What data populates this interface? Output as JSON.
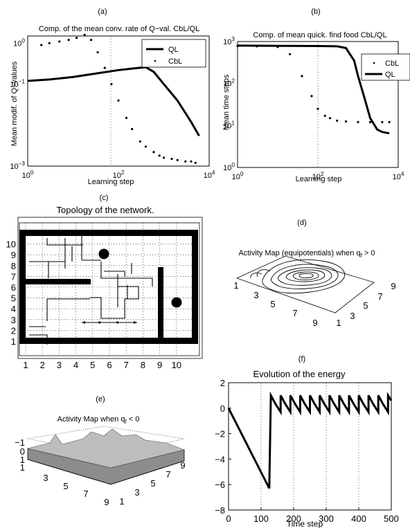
{
  "panels": {
    "a": {
      "label": "(a)",
      "title": "Comp. of the mean conv. rate of Q−val. CbL/QL",
      "xlabel": "Learning step",
      "ylabel": "Mean modif. of Q−values",
      "xticks": [
        {
          "value": 1,
          "base": "10",
          "exp": "0"
        },
        {
          "value": 100,
          "base": "10",
          "exp": "2"
        },
        {
          "value": 10000,
          "base": "10",
          "exp": "4"
        }
      ],
      "yticks": [
        {
          "value": 0.001,
          "base": "10",
          "exp": "−3"
        },
        {
          "value": 0.1,
          "base": "10",
          "exp": "−1"
        },
        {
          "value": 1,
          "base": "10",
          "exp": "0"
        }
      ],
      "legend": [
        {
          "label": "QL",
          "style": "line"
        },
        {
          "label": "CbL",
          "style": "dots"
        }
      ]
    },
    "b": {
      "label": "(b)",
      "title": "Comp. of mean quick. find food CbL/QL",
      "xlabel": "Learning step",
      "ylabel": "Mean time steps",
      "xticks": [
        {
          "value": 1,
          "base": "10",
          "exp": "0"
        },
        {
          "value": 100,
          "base": "10",
          "exp": "2"
        },
        {
          "value": 10000,
          "base": "10",
          "exp": "4"
        }
      ],
      "yticks": [
        {
          "value": 1,
          "base": "10",
          "exp": "0"
        },
        {
          "value": 10,
          "base": "10",
          "exp": "1"
        },
        {
          "value": 100,
          "base": "10",
          "exp": "2"
        },
        {
          "value": 1000,
          "base": "10",
          "exp": "3"
        }
      ],
      "legend": [
        {
          "label": "CbL",
          "style": "dots"
        },
        {
          "label": "QL",
          "style": "line"
        }
      ]
    },
    "c": {
      "label": "(c)",
      "title": "Topology of the network.",
      "xticks": [
        "1",
        "2",
        "3",
        "4",
        "5",
        "6",
        "7",
        "8",
        "9",
        "10"
      ],
      "yticks": [
        "1",
        "2",
        "3",
        "4",
        "5",
        "6",
        "7",
        "8",
        "9",
        "10"
      ]
    },
    "d": {
      "label": "(d)",
      "title_main": "Activity Map (equipotentials) when q",
      "title_sub": "f",
      "title_tail": " > 0",
      "x_ticks": [
        "1",
        "3",
        "5",
        "7",
        "9"
      ],
      "y_ticks": [
        "1",
        "3",
        "5",
        "7",
        "9"
      ]
    },
    "e": {
      "label": "(e)",
      "title_main": "Activity Map when q",
      "title_sub": "f",
      "title_tail": " < 0",
      "z_ticks": [
        "−1",
        "0",
        "1",
        "1"
      ],
      "x_ticks": [
        "3",
        "5",
        "7",
        "9"
      ],
      "y_ticks": [
        "1",
        "3",
        "5",
        "7",
        "9"
      ]
    },
    "f": {
      "label": "(f)",
      "title": "Evolution of the energy",
      "xlabel": "Time step"
    }
  },
  "chart_data": [
    {
      "panel": "a",
      "type": "line",
      "xscale": "log",
      "yscale": "log",
      "xlim": [
        1,
        10000
      ],
      "ylim": [
        0.001,
        1.5
      ],
      "grid": "vertical dotted at 10^2",
      "legend_position": "top-right",
      "series": [
        {
          "name": "QL",
          "style": "line",
          "x": [
            1,
            3,
            10,
            30,
            100,
            200,
            400,
            600,
            1000,
            2000,
            4000,
            6000
          ],
          "y": [
            0.12,
            0.13,
            0.15,
            0.18,
            0.22,
            0.24,
            0.26,
            0.2,
            0.1,
            0.04,
            0.012,
            0.0055
          ]
        },
        {
          "name": "CbL",
          "style": "dots",
          "x": [
            2,
            3,
            5,
            8,
            12,
            18,
            25,
            35,
            50,
            70,
            100,
            150,
            200,
            300,
            400,
            600,
            800,
            1000,
            1500,
            2000,
            3000,
            4000,
            5000
          ],
          "y": [
            0.9,
            1.0,
            1.1,
            1.2,
            1.35,
            1.6,
            1.2,
            0.6,
            0.25,
            0.1,
            0.04,
            0.015,
            0.008,
            0.004,
            0.003,
            0.0022,
            0.0018,
            0.0016,
            0.0015,
            0.0014,
            0.0013,
            0.0013,
            0.0012
          ]
        }
      ]
    },
    {
      "panel": "b",
      "type": "line",
      "xscale": "log",
      "yscale": "log",
      "xlim": [
        1,
        10000
      ],
      "ylim": [
        1,
        1000
      ],
      "grid": "vertical dotted at 10^2",
      "legend_position": "top-right",
      "series": [
        {
          "name": "CbL",
          "style": "dots",
          "x": [
            1,
            3,
            10,
            20,
            40,
            70,
            100,
            150,
            200,
            300,
            500,
            1000,
            2000,
            4000,
            6000
          ],
          "y": [
            780,
            770,
            740,
            500,
            150,
            50,
            25,
            17,
            15,
            13,
            12.5,
            12,
            12,
            12,
            12
          ]
        },
        {
          "name": "QL",
          "style": "line",
          "x": [
            1,
            10,
            100,
            300,
            500,
            800,
            1000,
            1500,
            2000,
            3000,
            4000,
            6000
          ],
          "y": [
            800,
            790,
            780,
            770,
            700,
            350,
            150,
            40,
            15,
            8,
            7,
            6.5
          ]
        }
      ]
    },
    {
      "panel": "f",
      "type": "line",
      "xlim": [
        0,
        500
      ],
      "ylim": [
        -8,
        2
      ],
      "xticks": [
        0,
        100,
        200,
        300,
        400,
        500
      ],
      "yticks": [
        -8,
        -6,
        -4,
        -2,
        0,
        2
      ],
      "grid": "vertical dotted at 100, 200, 300, 400",
      "series": [
        {
          "x": [
            0,
            125,
            130,
            130,
            145,
            160,
            160,
            175,
            190,
            190,
            205,
            220,
            220,
            235,
            250,
            250,
            265,
            280,
            280,
            295,
            310,
            310,
            325,
            340,
            340,
            355,
            370,
            370,
            385,
            400,
            400,
            415,
            430,
            430,
            445,
            460,
            460,
            475,
            490,
            490,
            500
          ],
          "y": [
            0,
            -6.3,
            1,
            1,
            0.3,
            -0.3,
            1,
            0.3,
            -0.3,
            1,
            0.3,
            -0.3,
            1,
            0.3,
            -0.3,
            1,
            0.3,
            -0.3,
            1,
            0.3,
            -0.3,
            1,
            0.3,
            -0.3,
            1,
            0.3,
            -0.3,
            1,
            0.3,
            -0.3,
            1,
            0.3,
            -0.3,
            1,
            0.3,
            -0.3,
            1,
            0.3,
            -0.3,
            1,
            0.6
          ]
        }
      ]
    }
  ]
}
